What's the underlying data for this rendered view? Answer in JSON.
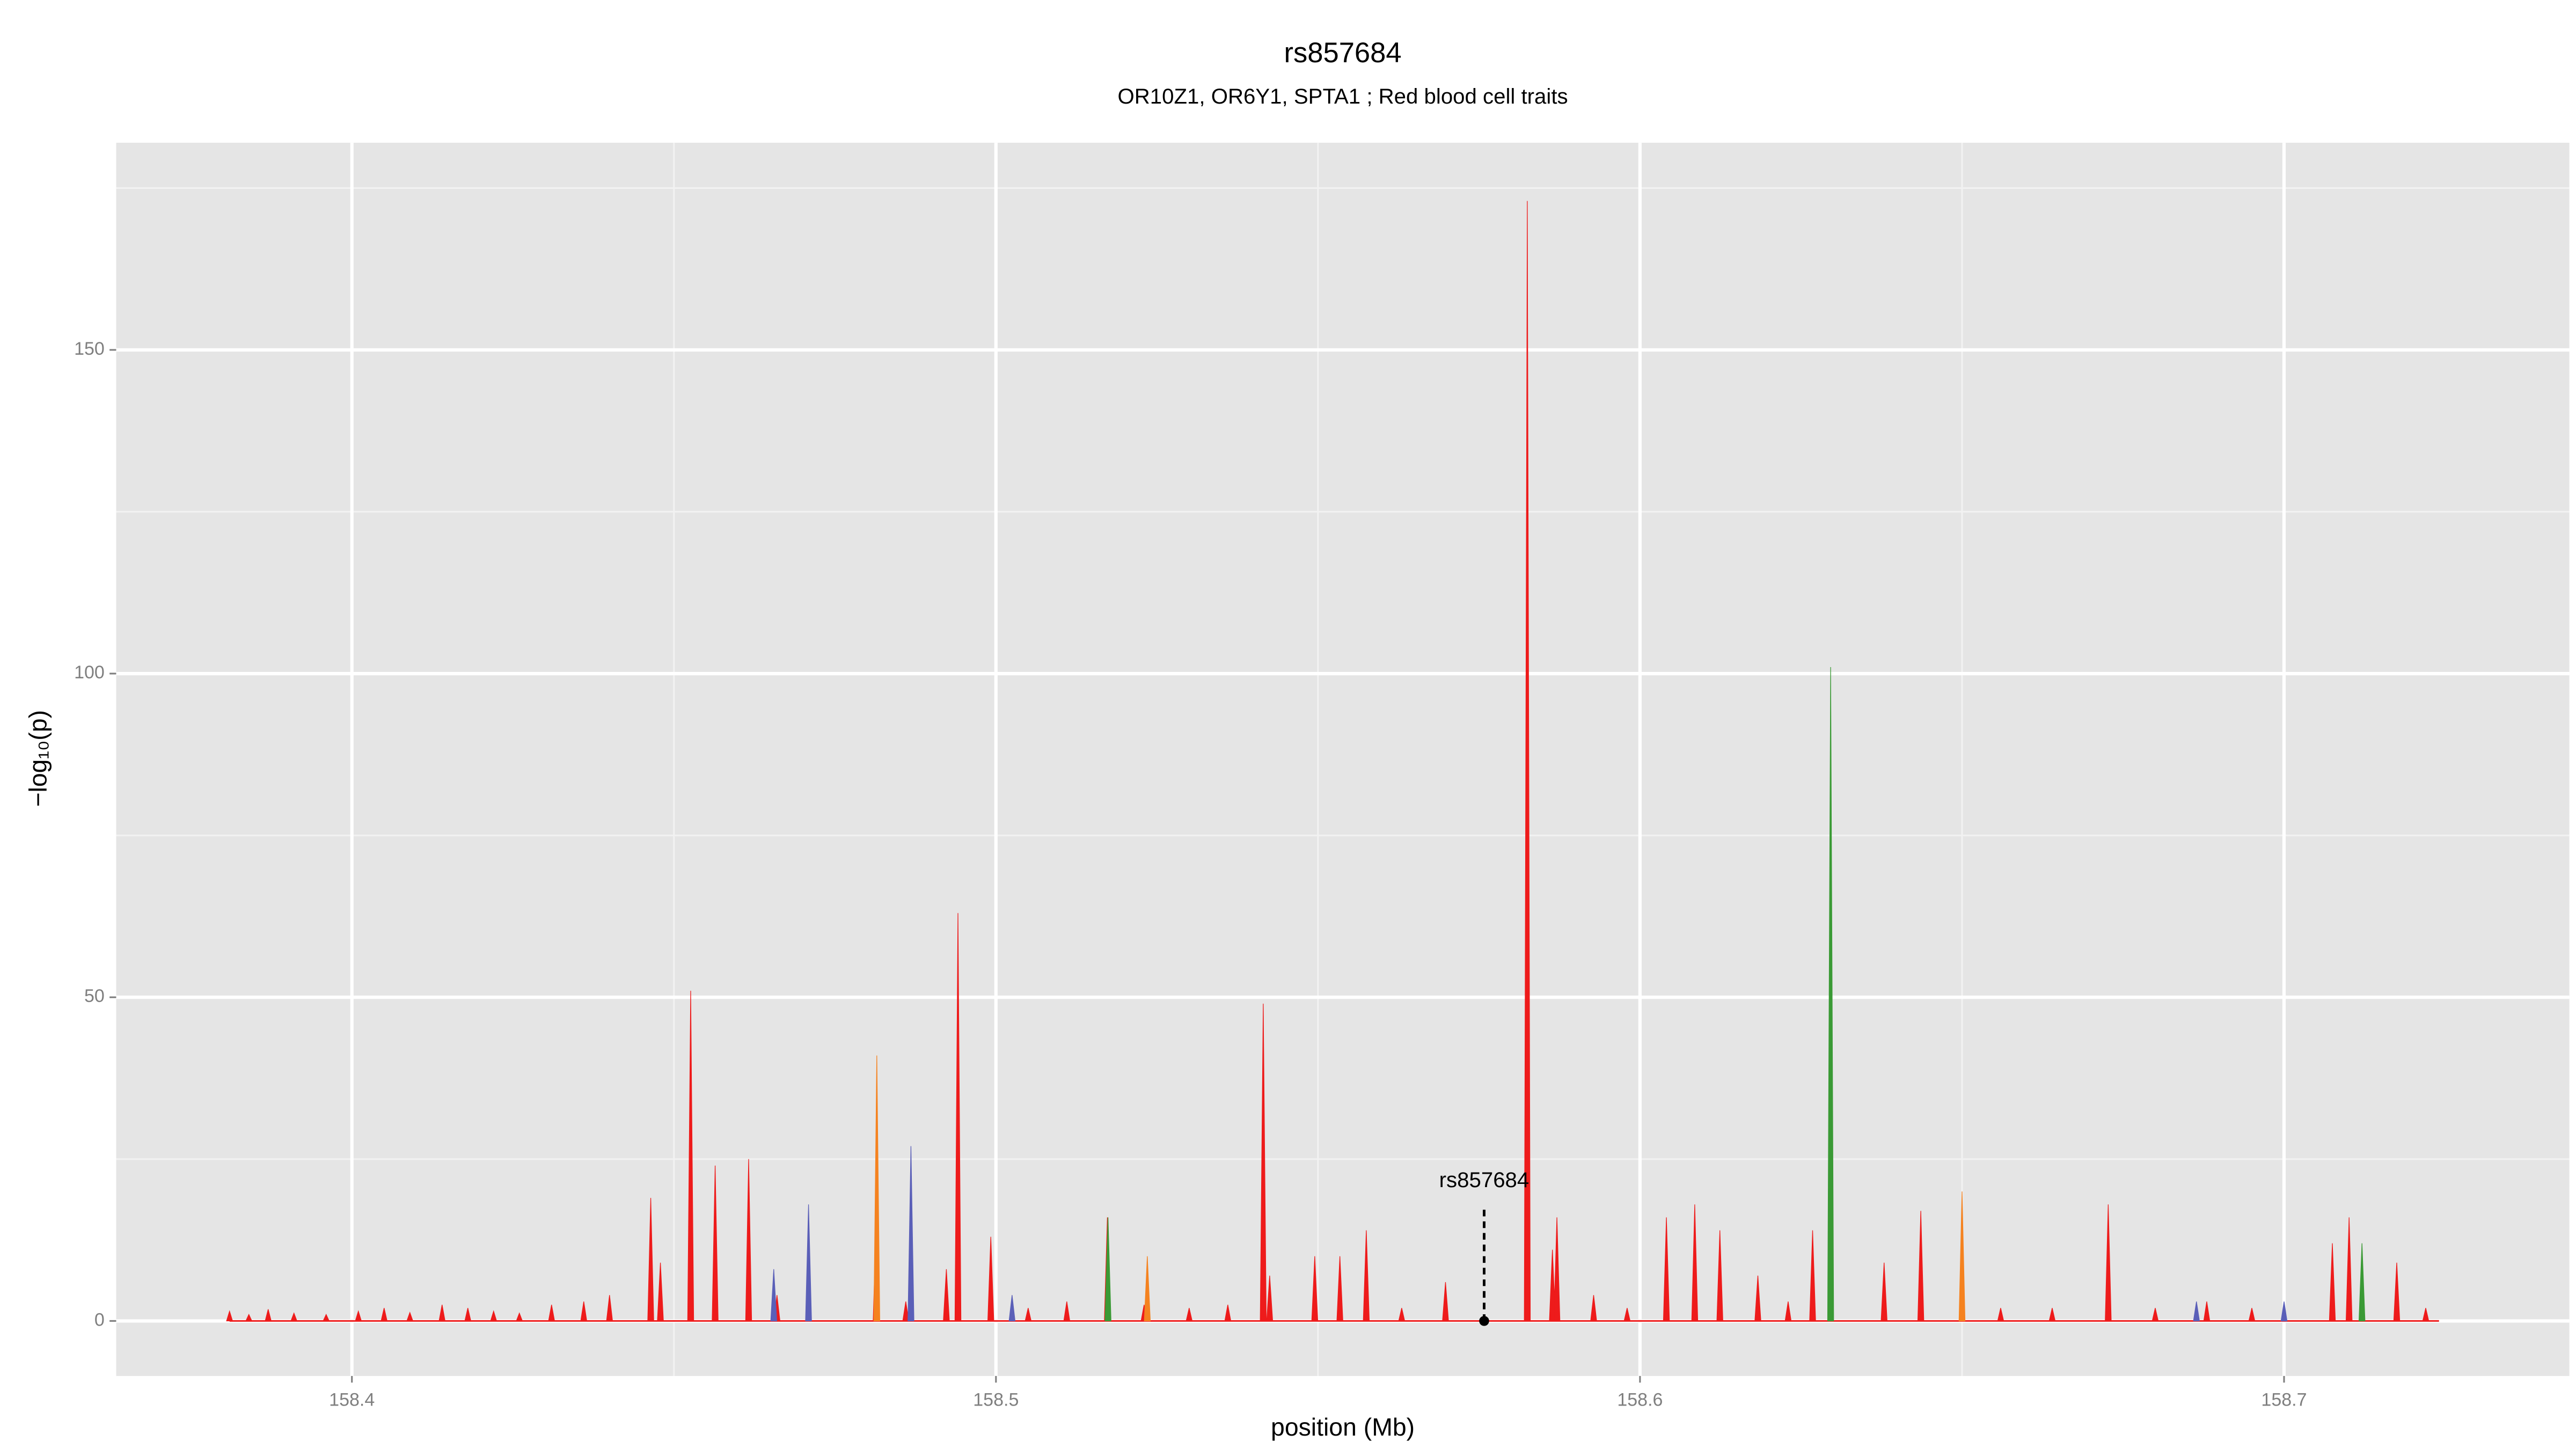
{
  "chart_data": {
    "type": "spike",
    "title": "rs857684",
    "subtitle": "OR10Z1, OR6Y1, SPTA1 ; Red blood cell traits",
    "xlabel": "position (Mb)",
    "ylabel": "−log₁₀(p)",
    "xlim": [
      158.3634,
      158.7443
    ],
    "ylim": [
      -8.5,
      182
    ],
    "xticks": [
      158.4,
      158.5,
      158.6,
      158.7
    ],
    "yticks": [
      0,
      50,
      100,
      150
    ],
    "grid": true,
    "annotation": {
      "label": "rs857684",
      "x": 158.5758
    },
    "series": [
      {
        "color": "#ee1b1b",
        "x": [
          158.381,
          158.384,
          158.387,
          158.391,
          158.396,
          158.401,
          158.405,
          158.409,
          158.414,
          158.418,
          158.422,
          158.426,
          158.431,
          158.436,
          158.44,
          158.4464,
          158.4479,
          158.4526,
          158.4564,
          158.4616,
          158.466,
          158.4814,
          158.486,
          158.4923,
          158.4941,
          158.4992,
          158.505,
          158.511,
          158.5173,
          158.523,
          158.53,
          158.536,
          158.5415,
          158.5425,
          158.5495,
          158.5534,
          158.5575,
          158.563,
          158.5698,
          158.5825,
          158.5864,
          158.5871,
          158.5928,
          158.598,
          158.6041,
          158.6085,
          158.6124,
          158.6183,
          158.623,
          158.6268,
          158.6379,
          158.6436,
          158.656,
          158.664,
          158.6727,
          158.68,
          158.688,
          158.695,
          158.7075,
          158.7101,
          158.7175,
          158.722
        ],
        "values": [
          1.5,
          1,
          1.8,
          1.2,
          1,
          1.5,
          2,
          1.3,
          2.5,
          2,
          1.5,
          1.2,
          2.5,
          3,
          4,
          19,
          9,
          51,
          24,
          25,
          4,
          15,
          3,
          8,
          63,
          13,
          2,
          3,
          16,
          2.5,
          2,
          2.5,
          49,
          7,
          10,
          10,
          14,
          2,
          6,
          173,
          11,
          16,
          4,
          2,
          16,
          18,
          14,
          7,
          3,
          14,
          9,
          17,
          2,
          2,
          18,
          2,
          3,
          2,
          12,
          16,
          9,
          2
        ]
      },
      {
        "color": "#f5821f",
        "x": [
          158.4815,
          158.5235,
          158.65
        ],
        "values": [
          41,
          10,
          20
        ]
      },
      {
        "color": "#5a5fb8",
        "x": [
          158.4655,
          158.4709,
          158.4868,
          158.5025,
          158.6864,
          158.7
        ],
        "values": [
          8,
          18,
          27,
          4,
          3,
          3
        ]
      },
      {
        "color": "#3a9a35",
        "x": [
          158.5174,
          158.6296,
          158.7121
        ],
        "values": [
          16,
          101,
          12
        ]
      }
    ]
  }
}
